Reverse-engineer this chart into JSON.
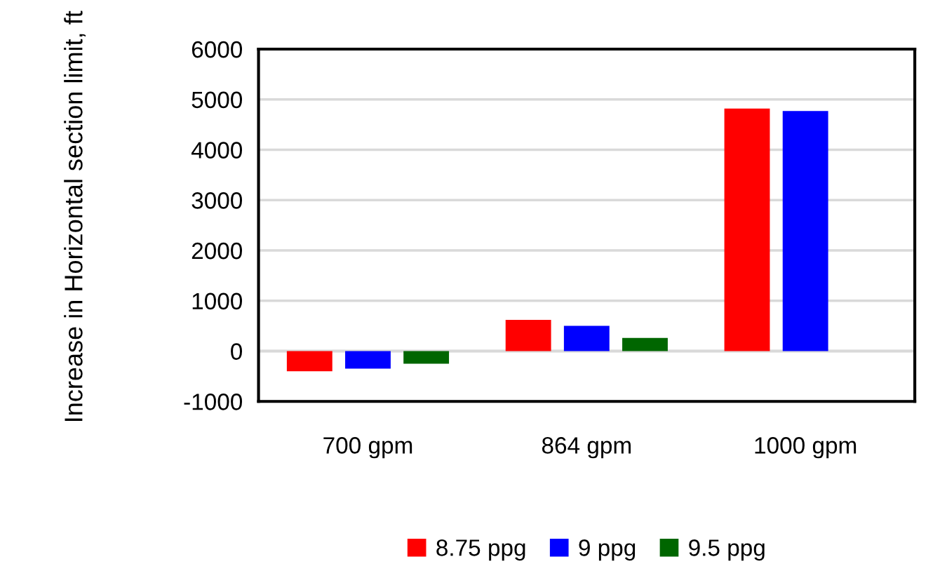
{
  "chart_data": {
    "type": "bar",
    "ylabel": "Increase in Horizontal section limit, ft",
    "categories": [
      "700 gpm",
      "864 gpm",
      "1000 gpm"
    ],
    "series": [
      {
        "name": "8.75 ppg",
        "color": "#ff0000",
        "values": [
          -400,
          620,
          4820
        ]
      },
      {
        "name": "9 ppg",
        "color": "#0000ff",
        "values": [
          -350,
          500,
          4770
        ]
      },
      {
        "name": "9.5 ppg",
        "color": "#006600",
        "values": [
          -250,
          260,
          null
        ]
      }
    ],
    "ylim": [
      -1000,
      6000
    ],
    "yticks": [
      -1000,
      0,
      1000,
      2000,
      3000,
      4000,
      5000,
      6000
    ],
    "grid": "y",
    "legend": "bottom"
  }
}
